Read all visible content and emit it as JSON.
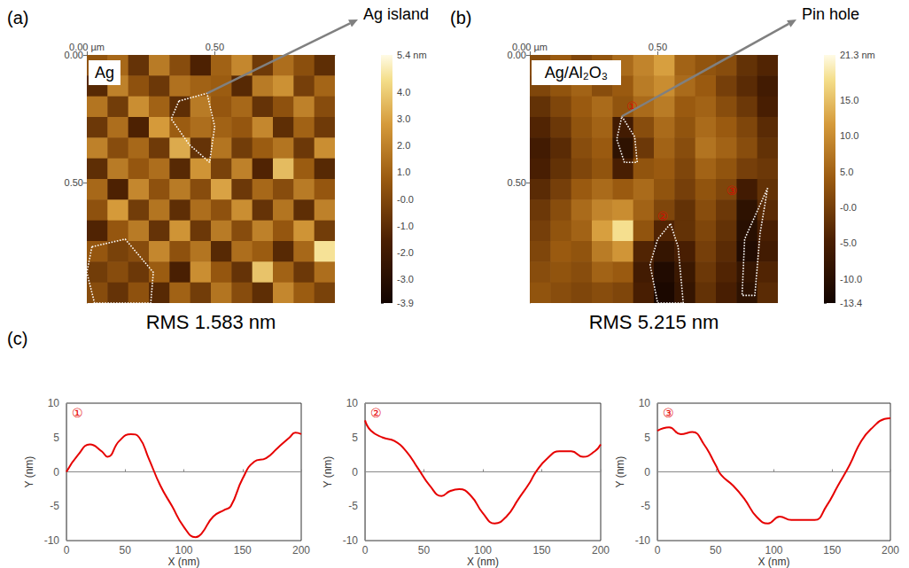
{
  "chart_data": [
    {
      "type": "heatmap",
      "panel": "(a)",
      "label": "Ag",
      "annotation": "Ag island",
      "footer": "RMS 1.583 nm",
      "xlim": [
        0,
        0.97
      ],
      "ylim": [
        0,
        0.97
      ],
      "xticks": [
        {
          "value": 0,
          "label": "0.00 µm"
        },
        {
          "value": 0.5,
          "label": "0.50"
        }
      ],
      "yticks": [
        {
          "value": 0,
          "label": "0.00"
        },
        {
          "value": 0.5,
          "label": "0.50"
        }
      ],
      "colorbar": {
        "range": [
          -3.9,
          5.4
        ],
        "ticks": [
          {
            "value": 5.4,
            "label": "5.4 nm"
          },
          {
            "value": 4,
            "label": "4.0"
          },
          {
            "value": 3,
            "label": "3.0"
          },
          {
            "value": 2,
            "label": "2.0"
          },
          {
            "value": 1,
            "label": "1.0"
          },
          {
            "value": 0,
            "label": "-0.0"
          },
          {
            "value": -1,
            "label": "-1.0"
          },
          {
            "value": -2,
            "label": "-2.0"
          },
          {
            "value": -3,
            "label": "-3.0"
          },
          {
            "value": -3.9,
            "label": "-3.9"
          }
        ]
      },
      "cells": [
        [
          0.5,
          1.2,
          -0.8,
          1.8,
          0.2,
          -1.5,
          1.0,
          2.2,
          -0.5,
          1.4,
          0.3,
          -1.0
        ],
        [
          -1.2,
          2.0,
          0.4,
          -0.6,
          1.5,
          1.0,
          0.8,
          -1.2,
          1.8,
          2.5,
          -0.3,
          1.1
        ],
        [
          1.6,
          -0.4,
          2.4,
          1.0,
          -1.0,
          1.8,
          0.6,
          1.2,
          -0.8,
          0.4,
          2.0,
          0.2
        ],
        [
          -0.6,
          1.4,
          -1.5,
          2.8,
          0.8,
          1.4,
          1.0,
          0.6,
          2.2,
          -1.0,
          1.0,
          -0.5
        ],
        [
          2.0,
          0.2,
          1.2,
          -0.5,
          3.2,
          -0.8,
          1.6,
          -0.4,
          0.8,
          1.6,
          -0.6,
          2.4
        ],
        [
          -1.0,
          1.8,
          0.6,
          1.4,
          -1.2,
          2.6,
          -0.2,
          2.0,
          -1.4,
          3.6,
          0.8,
          -1.2
        ],
        [
          1.2,
          -1.5,
          2.2,
          0.4,
          1.8,
          0.2,
          3.0,
          -0.6,
          1.2,
          0.2,
          1.8,
          0.6
        ],
        [
          0.4,
          2.8,
          -0.4,
          1.6,
          -1.0,
          1.4,
          0.4,
          2.4,
          -0.8,
          1.6,
          -1.0,
          2.0
        ],
        [
          -1.4,
          0.6,
          1.8,
          -0.8,
          2.6,
          -0.6,
          1.8,
          0.2,
          2.0,
          0.6,
          2.6,
          -0.4
        ],
        [
          0.6,
          -0.2,
          0.2,
          2.2,
          0.4,
          1.6,
          -1.2,
          1.4,
          0.8,
          -1.2,
          1.2,
          4.6
        ],
        [
          -0.4,
          0.2,
          -0.6,
          0.8,
          -1.6,
          2.4,
          0.6,
          -0.8,
          3.8,
          1.0,
          -0.6,
          1.4
        ],
        [
          0.2,
          -0.8,
          0.4,
          -1.2,
          1.0,
          -0.4,
          1.6,
          0.2,
          -1.0,
          2.2,
          0.8,
          -0.2
        ]
      ],
      "outlines": [
        [
          [
            0.36,
            0.18
          ],
          [
            0.47,
            0.15
          ],
          [
            0.5,
            0.28
          ],
          [
            0.48,
            0.42
          ],
          [
            0.4,
            0.35
          ],
          [
            0.33,
            0.25
          ],
          [
            0.36,
            0.18
          ]
        ],
        [
          [
            0.02,
            0.75
          ],
          [
            0.15,
            0.72
          ],
          [
            0.26,
            0.85
          ],
          [
            0.25,
            0.97
          ],
          [
            0.03,
            0.97
          ],
          [
            0.0,
            0.85
          ],
          [
            0.02,
            0.75
          ]
        ]
      ],
      "markers": []
    },
    {
      "type": "heatmap",
      "panel": "(b)",
      "label": "Ag/Al₂O₃",
      "annotation": "Pin hole",
      "footer": "RMS 5.215 nm",
      "xlim": [
        0,
        0.97
      ],
      "ylim": [
        0,
        0.97
      ],
      "xticks": [
        {
          "value": 0,
          "label": "0.00 µm"
        },
        {
          "value": 0.5,
          "label": "0.50"
        }
      ],
      "yticks": [
        {
          "value": 0,
          "label": "0.00"
        },
        {
          "value": 0.5,
          "label": "0.50"
        }
      ],
      "colorbar": {
        "range": [
          -13.4,
          21.3
        ],
        "ticks": [
          {
            "value": 21.3,
            "label": "21.3 nm"
          },
          {
            "value": 15,
            "label": "15.0"
          },
          {
            "value": 10,
            "label": "10.0"
          },
          {
            "value": 5,
            "label": "5.0"
          },
          {
            "value": 0,
            "label": "-0.0"
          },
          {
            "value": -5,
            "label": "-5.0"
          },
          {
            "value": -10,
            "label": "-10.0"
          },
          {
            "value": -13.4,
            "label": "-13.4"
          }
        ]
      },
      "cells": [
        [
          2,
          4,
          1,
          3,
          6,
          9,
          12,
          5,
          3,
          2,
          -2,
          -4
        ],
        [
          1,
          3,
          5,
          2,
          4,
          8,
          10,
          6,
          4,
          0,
          -3,
          -6
        ],
        [
          -2,
          1,
          4,
          6,
          3,
          6,
          8,
          4,
          5,
          2,
          -1,
          -5
        ],
        [
          -4,
          -1,
          3,
          5,
          -6,
          2,
          6,
          3,
          6,
          4,
          1,
          -3
        ],
        [
          -6,
          -3,
          2,
          4,
          -9,
          -1,
          5,
          2,
          7,
          5,
          2,
          -2
        ],
        [
          -5,
          -2,
          1,
          3,
          -5,
          3,
          4,
          1,
          5,
          3,
          0,
          -1
        ],
        [
          -3,
          0,
          4,
          6,
          4,
          6,
          3,
          0,
          3,
          1,
          -6,
          -2
        ],
        [
          -1,
          2,
          6,
          9,
          10,
          5,
          1,
          -2,
          2,
          -1,
          -9,
          -3
        ],
        [
          0,
          3,
          5,
          12,
          18,
          3,
          -4,
          -2,
          1,
          -2,
          -10,
          -5
        ],
        [
          1,
          4,
          3,
          8,
          11,
          -4,
          -8,
          -5,
          0,
          -3,
          -11,
          -6
        ],
        [
          2,
          3,
          2,
          5,
          4,
          -6,
          -11,
          -7,
          -1,
          -4,
          -8,
          -4
        ],
        [
          3,
          2,
          1,
          2,
          1,
          -5,
          -12,
          -8,
          -2,
          -5,
          -9,
          -3
        ]
      ],
      "outlines": [
        [
          [
            0.36,
            0.24
          ],
          [
            0.41,
            0.32
          ],
          [
            0.42,
            0.42
          ],
          [
            0.37,
            0.42
          ],
          [
            0.34,
            0.33
          ],
          [
            0.36,
            0.24
          ]
        ],
        [
          [
            0.55,
            0.66
          ],
          [
            0.58,
            0.75
          ],
          [
            0.6,
            0.97
          ],
          [
            0.5,
            0.97
          ],
          [
            0.47,
            0.82
          ],
          [
            0.5,
            0.72
          ],
          [
            0.55,
            0.66
          ]
        ],
        [
          [
            0.93,
            0.52
          ],
          [
            0.9,
            0.7
          ],
          [
            0.88,
            0.94
          ],
          [
            0.83,
            0.94
          ],
          [
            0.84,
            0.72
          ],
          [
            0.93,
            0.52
          ]
        ]
      ],
      "markers": [
        {
          "label": "①",
          "x": 0.4,
          "y": 0.2
        },
        {
          "label": "②",
          "x": 0.52,
          "y": 0.63
        },
        {
          "label": "③",
          "x": 0.79,
          "y": 0.53
        }
      ]
    },
    {
      "type": "line",
      "panel": "(c)",
      "label": "①",
      "color": "#e60000",
      "x_label": "X (nm)",
      "y_label": "Y (nm)",
      "xlim": [
        0,
        200
      ],
      "xticks": [
        0,
        50,
        100,
        150,
        200
      ],
      "ylim": [
        -10,
        10
      ],
      "yticks": [
        -10,
        -5,
        0,
        5,
        10
      ],
      "grid": false,
      "x": [
        0,
        10,
        20,
        30,
        35,
        45,
        55,
        62,
        70,
        80,
        90,
        100,
        110,
        115,
        125,
        135,
        140,
        150,
        160,
        170,
        180,
        190,
        195,
        200
      ],
      "values": [
        0,
        2.5,
        4,
        3,
        2.2,
        4.5,
        5.5,
        5,
        2,
        -2,
        -5,
        -8,
        -9.5,
        -9,
        -6.5,
        -5.5,
        -5,
        -1,
        1.5,
        2,
        3.5,
        5,
        5.7,
        5.5
      ]
    },
    {
      "type": "line",
      "label": "②",
      "color": "#e60000",
      "x_label": "X (nm)",
      "y_label": "Y (nm)",
      "xlim": [
        0,
        200
      ],
      "xticks": [
        0,
        50,
        100,
        150,
        200
      ],
      "ylim": [
        -10,
        10
      ],
      "yticks": [
        -10,
        -5,
        0,
        5,
        10
      ],
      "grid": false,
      "x": [
        0,
        5,
        15,
        25,
        35,
        45,
        55,
        65,
        72,
        80,
        90,
        100,
        110,
        120,
        130,
        140,
        145,
        155,
        165,
        175,
        185,
        195,
        200
      ],
      "values": [
        7.5,
        6,
        5,
        4.5,
        3,
        0.5,
        -2,
        -3.5,
        -2.8,
        -2.5,
        -3.5,
        -6,
        -7.5,
        -6.5,
        -4,
        -1.5,
        0,
        2,
        3,
        3,
        2.2,
        3,
        4
      ]
    },
    {
      "type": "line",
      "label": "③",
      "color": "#e60000",
      "x_label": "X (nm)",
      "y_label": "Y (nm)",
      "xlim": [
        0,
        200
      ],
      "xticks": [
        0,
        50,
        100,
        150,
        200
      ],
      "ylim": [
        -10,
        10
      ],
      "yticks": [
        -10,
        -5,
        0,
        5,
        10
      ],
      "grid": false,
      "x": [
        0,
        10,
        20,
        30,
        40,
        50,
        55,
        65,
        75,
        85,
        95,
        105,
        115,
        125,
        135,
        145,
        155,
        165,
        175,
        185,
        195,
        200
      ],
      "values": [
        6,
        6.5,
        5.5,
        5.8,
        4,
        1,
        -0.5,
        -2,
        -4,
        -6.5,
        -7.5,
        -6.5,
        -7,
        -7,
        -7,
        -5,
        -2,
        1,
        4.5,
        6.5,
        7.7,
        7.8
      ]
    }
  ]
}
